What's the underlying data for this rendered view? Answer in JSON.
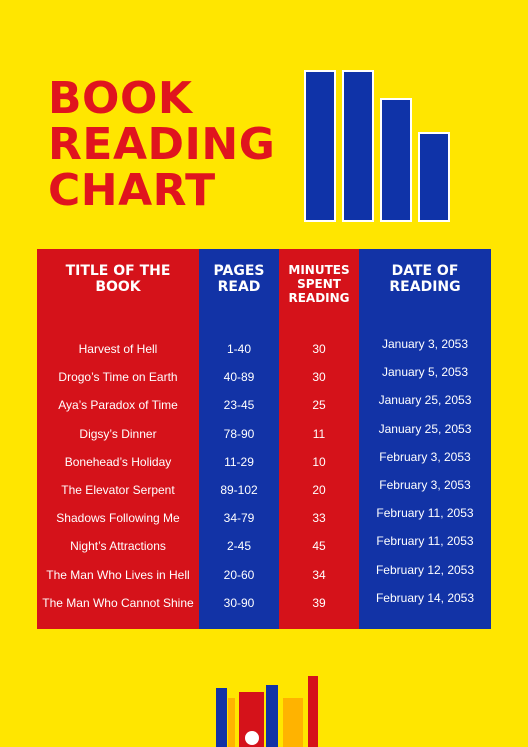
{
  "title": {
    "line1": "BOOK",
    "line2": "READING",
    "line3": "CHART"
  },
  "colors": {
    "background": "#FFE600",
    "red": "#D5121A",
    "blue": "#1233A6",
    "title_red": "#E0141E",
    "orange": "#FFB300"
  },
  "table": {
    "headers": [
      "TITLE OF THE BOOK",
      "PAGES READ",
      "MINUTES SPENT READING",
      "DATE OF READING"
    ],
    "rows": [
      [
        "Harvest of Hell",
        "1-40",
        "30",
        "January 3, 2053"
      ],
      [
        "Drogo’s Time on Earth",
        "40-89",
        "30",
        "January 5, 2053"
      ],
      [
        "Aya’s Paradox of Time",
        "23-45",
        "25",
        "January 25, 2053"
      ],
      [
        "Digsy’s Dinner",
        "78-90",
        "11",
        "January 25, 2053"
      ],
      [
        "Bonehead’s Holiday",
        "11-29",
        "10",
        "February 3, 2053"
      ],
      [
        "The Elevator Serpent",
        "89-102",
        "20",
        "February 3, 2053"
      ],
      [
        "Shadows Following Me",
        "34-79",
        "33",
        "February 11, 2053"
      ],
      [
        "Night’s Attractions",
        "2-45",
        "45",
        "February 11, 2053"
      ],
      [
        "The Man Who Lives in Hell",
        "20-60",
        "34",
        "February 12, 2053"
      ],
      [
        "The Man Who Cannot Shine",
        "30-90",
        "39",
        "February 14, 2053"
      ]
    ]
  }
}
